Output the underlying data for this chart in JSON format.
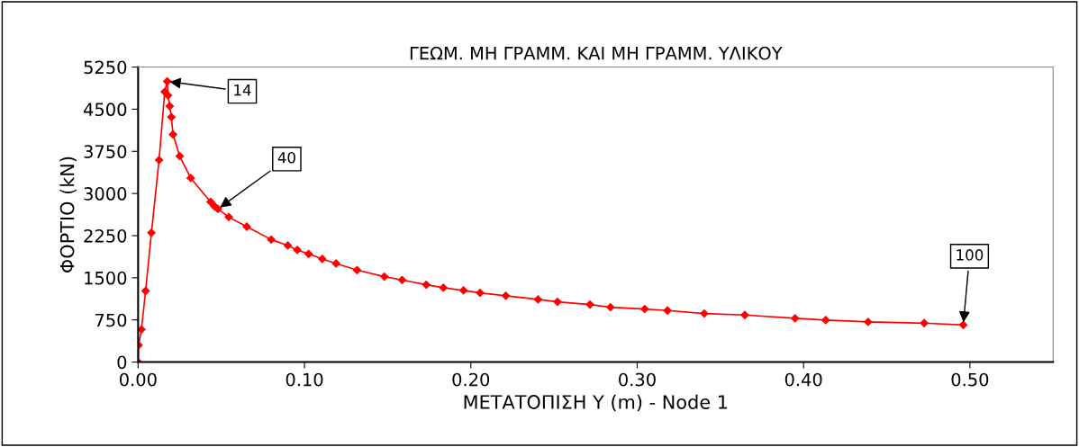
{
  "chart_data": {
    "type": "line",
    "title": "ΓΕΩΜ. ΜΗ ΓΡΑΜΜ. ΚΑΙ ΜΗ ΓΡΑΜΜ. ΥΛΙΚΟΥ",
    "xlabel": "ΜΕΤΑΤΟΠΙΣΗ Υ (m) - Node 1",
    "ylabel": "ΦΟΡΤΙΟ (kN)",
    "xlim": [
      0,
      0.55
    ],
    "xticks": [
      {
        "value": 0,
        "label": "0.00"
      },
      {
        "value": 0.1,
        "label": "0.10"
      },
      {
        "value": 0.2,
        "label": "0.20"
      },
      {
        "value": 0.3,
        "label": "0.30"
      },
      {
        "value": 0.4,
        "label": "0.40"
      },
      {
        "value": 0.5,
        "label": "0.50"
      }
    ],
    "ylim": [
      0,
      5250
    ],
    "yticks": [
      0,
      750,
      1500,
      2250,
      3000,
      3750,
      4500,
      5250
    ],
    "grid": false,
    "legend": false,
    "marker": "diamond",
    "line_style": "solid",
    "series": [
      {
        "color": "#ff0000",
        "x": [
          0,
          0.0003,
          0.002,
          0.0045,
          0.008,
          0.0126,
          0.016,
          0.0175,
          0.018,
          0.019,
          0.02,
          0.021,
          0.025,
          0.0316,
          0.0436,
          0.046,
          0.048,
          0.0545,
          0.0653,
          0.08,
          0.09,
          0.0957,
          0.1025,
          0.1107,
          0.119,
          0.1316,
          0.148,
          0.1587,
          0.1732,
          0.1835,
          0.1956,
          0.2055,
          0.221,
          0.2404,
          0.2521,
          0.2716,
          0.2839,
          0.3045,
          0.3182,
          0.3403,
          0.3647,
          0.3949,
          0.4133,
          0.4388,
          0.4725,
          0.496
        ],
        "values": [
          0,
          300,
          580,
          1265,
          2300,
          3595,
          4810,
          4995,
          4745,
          4555,
          4360,
          4050,
          3665,
          3275,
          2850,
          2770,
          2725,
          2580,
          2410,
          2180,
          2075,
          1995,
          1925,
          1835,
          1755,
          1637,
          1520,
          1461,
          1376,
          1323,
          1275,
          1232,
          1180,
          1115,
          1072,
          1024,
          976,
          944,
          917,
          864,
          837,
          779,
          747,
          715,
          693,
          661
        ]
      }
    ],
    "annotations": [
      {
        "text": "14",
        "x": 0.0175,
        "y": 4995
      },
      {
        "text": "40",
        "x": 0.048,
        "y": 2725
      },
      {
        "text": "100",
        "x": 0.496,
        "y": 661
      }
    ]
  }
}
